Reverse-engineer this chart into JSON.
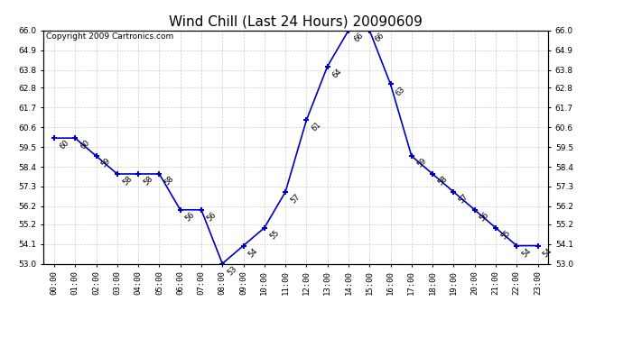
{
  "title": "Wind Chill (Last 24 Hours) 20090609",
  "copyright": "Copyright 2009 Cartronics.com",
  "hours": [
    "00:00",
    "01:00",
    "02:00",
    "03:00",
    "04:00",
    "05:00",
    "06:00",
    "07:00",
    "08:00",
    "09:00",
    "10:00",
    "11:00",
    "12:00",
    "13:00",
    "14:00",
    "15:00",
    "16:00",
    "17:00",
    "18:00",
    "19:00",
    "20:00",
    "21:00",
    "22:00",
    "23:00"
  ],
  "values": [
    60,
    60,
    59,
    58,
    58,
    58,
    56,
    56,
    53,
    54,
    55,
    57,
    61,
    64,
    66,
    66,
    63,
    59,
    58,
    57,
    56,
    55,
    54,
    54
  ],
  "line_color": "#0000bb",
  "marker_color": "#0000bb",
  "bg_color": "#ffffff",
  "grid_color": "#cccccc",
  "ylim_min": 53.0,
  "ylim_max": 66.0,
  "yticks": [
    53.0,
    54.1,
    55.2,
    56.2,
    57.3,
    58.4,
    59.5,
    60.6,
    61.7,
    62.8,
    63.8,
    64.9,
    66.0
  ],
  "title_fontsize": 11,
  "copyright_fontsize": 6.5,
  "label_fontsize": 6,
  "tick_fontsize": 6.5
}
